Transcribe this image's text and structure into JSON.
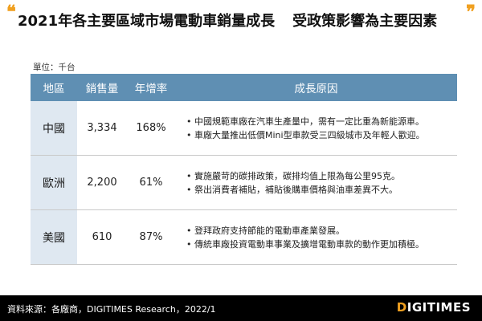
{
  "title": "2021年各主要區域市場電動車銷量成長",
  "subtitle": "受政策影響為主要因素",
  "unit": "單位：千台",
  "table": {
    "headers": [
      "地區",
      "銷售量",
      "年增率",
      "成長原因"
    ],
    "rows": [
      {
        "region": "中國",
        "sales": "3,334",
        "growth": "168%",
        "reasons": [
          "中國規範車廠在汽車生產量中，需有一定比重為新能源車。",
          "車廠大量推出低價Mini型車款受三四級城市及年輕人歡迎。"
        ]
      },
      {
        "region": "歐洲",
        "sales": "2,200",
        "growth": "61%",
        "reasons": [
          "實施嚴苛的碳排政策，碳排均值上限為每公里95克。",
          "祭出消費者補貼，補貼後購車價格與油車差異不大。"
        ]
      },
      {
        "region": "美國",
        "sales": "610",
        "growth": "87%",
        "reasons": [
          "登拜政府支持節能的電動車產業發展。",
          "傳統車廠投資電動車事業及擴增電動車款的動作更加積極。"
        ]
      }
    ]
  },
  "footer": {
    "source": "資料來源：各廠商，DIGITIMES Research，2022/1",
    "logo_mark": "D",
    "logo_rest": "IGITIMES"
  },
  "colors": {
    "header_bg": "#5f8fb3",
    "region_bg": "#dfe8f1",
    "accent": "#f0a020",
    "footer_bg": "#000000"
  }
}
